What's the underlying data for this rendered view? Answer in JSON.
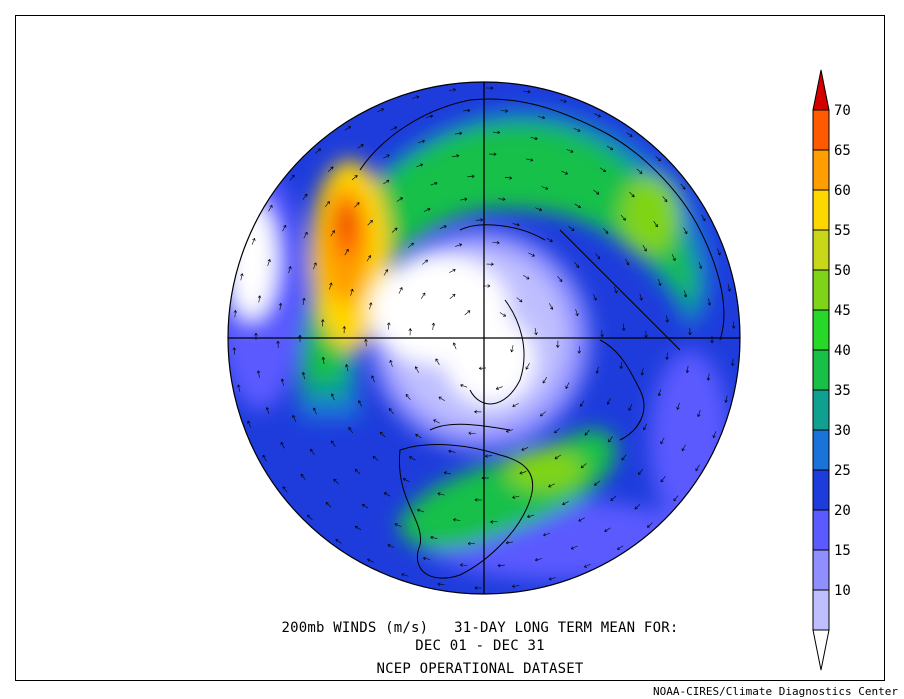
{
  "title": {
    "line1": "200mb WINDS (m/s)   31-DAY LONG TERM MEAN FOR:",
    "line2": "DEC 01 - DEC 31",
    "line3": "NCEP OPERATIONAL DATASET"
  },
  "footer": "NOAA-CIRES/Climate Diagnostics Center",
  "colorbar": {
    "units": "m/s",
    "levels": [
      {
        "label": "10",
        "color": "#bfbfff"
      },
      {
        "label": "15",
        "color": "#8f8fff"
      },
      {
        "label": "20",
        "color": "#5a5aff"
      },
      {
        "label": "25",
        "color": "#1e3cdc"
      },
      {
        "label": "30",
        "color": "#1a73d8"
      },
      {
        "label": "35",
        "color": "#10a090"
      },
      {
        "label": "40",
        "color": "#18c048"
      },
      {
        "label": "45",
        "color": "#28d828"
      },
      {
        "label": "50",
        "color": "#80d418"
      },
      {
        "label": "55",
        "color": "#c8d818"
      },
      {
        "label": "60",
        "color": "#ffd700"
      },
      {
        "label": "65",
        "color": "#ff9e00"
      },
      {
        "label": "70",
        "color": "#ff5a00"
      }
    ],
    "below_color": "#ffffff",
    "above_color": "#d40000"
  },
  "map": {
    "projection": "north-polar-stereographic",
    "field": "200mb vector wind, long term mean",
    "land_outline_color": "#000000",
    "low_wind_color": "#ffffff"
  }
}
